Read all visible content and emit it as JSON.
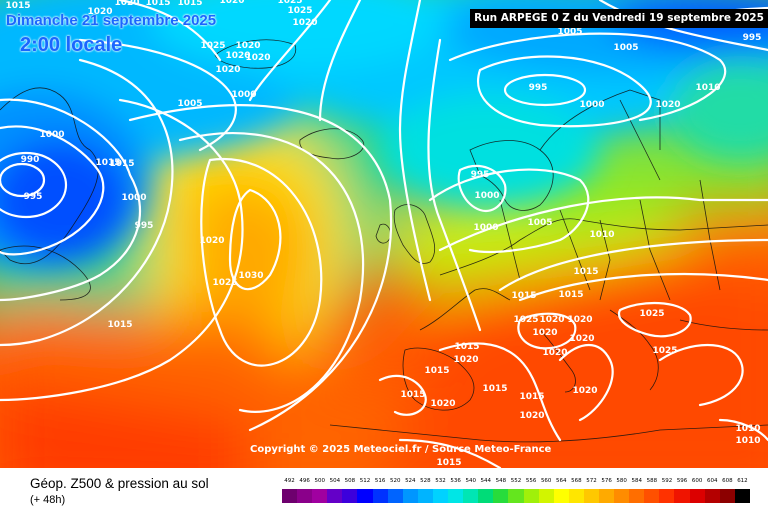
{
  "header": {
    "date_line": "Dimanche 21 septembre 2025",
    "local_time": "2:00 locale",
    "run_banner": "Run ARPEGE 0 Z du Vendredi 19 septembre 2025"
  },
  "footer": {
    "product_title": "Géop. Z500 & pression au sol",
    "lead_time": "(+ 48h)",
    "copyright": "Copyright © 2025 Meteociel.fr / Source Meteo-France"
  },
  "legend": {
    "unit_ticks": [
      "492",
      "496",
      "500",
      "504",
      "508",
      "512",
      "516",
      "520",
      "524",
      "528",
      "532",
      "536",
      "540",
      "544",
      "548",
      "552",
      "556",
      "560",
      "564",
      "568",
      "572",
      "576",
      "580",
      "584",
      "588",
      "592",
      "596",
      "600",
      "604",
      "608",
      "612"
    ],
    "colors": [
      "#6e006e",
      "#8a008a",
      "#a000a0",
      "#6400c8",
      "#3c00dc",
      "#0000ff",
      "#0032ff",
      "#0064ff",
      "#0096ff",
      "#00b4ff",
      "#00d2ff",
      "#00e6e6",
      "#00e6b4",
      "#00dc78",
      "#28dc3c",
      "#64e61e",
      "#a0f00a",
      "#d2f500",
      "#ffff00",
      "#ffe600",
      "#ffc800",
      "#ffaa00",
      "#ff8c00",
      "#ff6e00",
      "#ff5000",
      "#ff3200",
      "#f01400",
      "#dc0000",
      "#b40000",
      "#8c0000",
      "#000000"
    ]
  },
  "pressure_labels": [
    "1015",
    "1020",
    "1020",
    "1015",
    "1015",
    "1020",
    "1025",
    "1025",
    "1020",
    "1025",
    "1020",
    "1020",
    "1020",
    "1020",
    "1000",
    "1015",
    "990",
    "995",
    "1000",
    "995",
    "1020",
    "1025",
    "1030",
    "1015",
    "1005",
    "995",
    "1000",
    "1005",
    "995",
    "995",
    "1000",
    "1000",
    "1005",
    "1010",
    "1015",
    "1015",
    "1015",
    "1025",
    "1020",
    "1020",
    "1020",
    "1020",
    "1025",
    "1025",
    "1020",
    "1015",
    "1015",
    "1020",
    "1020",
    "1015",
    "1020",
    "1015",
    "1020",
    "1015",
    "1010",
    "1010",
    "1015",
    "1015",
    "1020",
    "1005",
    "1000",
    "1015",
    "1010"
  ]
}
